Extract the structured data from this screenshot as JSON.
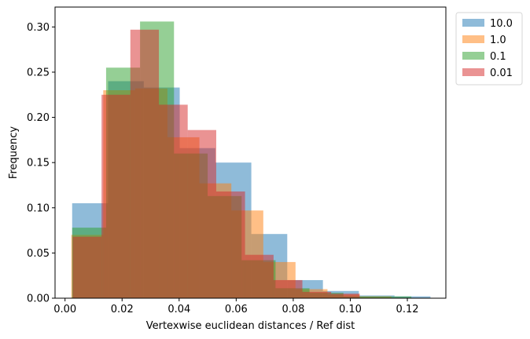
{
  "chart_data": {
    "type": "bar",
    "subtype": "overlapping-histogram",
    "title": "",
    "xlabel": "Vertexwise euclidean distances / Ref dist",
    "ylabel": "Frequency",
    "xlim": [
      -0.0035,
      0.1335
    ],
    "ylim": [
      0,
      0.322
    ],
    "xticks": [
      0.0,
      0.02,
      0.04,
      0.06,
      0.08,
      0.1,
      0.12
    ],
    "xtick_labels": [
      "0.00",
      "0.02",
      "0.04",
      "0.06",
      "0.08",
      "0.10",
      "0.12"
    ],
    "yticks": [
      0.0,
      0.05,
      0.1,
      0.15,
      0.2,
      0.25,
      0.3
    ],
    "ytick_labels": [
      "0.00",
      "0.05",
      "0.10",
      "0.15",
      "0.20",
      "0.25",
      "0.30"
    ],
    "grid": false,
    "legend_position": "outside-top-right",
    "bar_alpha": 0.5,
    "series": [
      {
        "name": "10.0",
        "color": "#1f77b4",
        "bins": [
          0.0025,
          0.0151,
          0.0276,
          0.0402,
          0.0527,
          0.0653,
          0.0779,
          0.0904,
          0.103,
          0.1155,
          0.1281
        ],
        "values": [
          0.105,
          0.24,
          0.233,
          0.166,
          0.15,
          0.071,
          0.02,
          0.008,
          0.003,
          0.002
        ]
      },
      {
        "name": "1.0",
        "color": "#ff7f0e",
        "bins": [
          0.0022,
          0.0134,
          0.0246,
          0.0359,
          0.0471,
          0.0583,
          0.0695,
          0.0808,
          0.092,
          0.1032,
          0.1144
        ],
        "values": [
          0.07,
          0.23,
          0.232,
          0.178,
          0.127,
          0.097,
          0.04,
          0.01,
          0.004,
          0.002
        ]
      },
      {
        "name": "0.1",
        "color": "#2ca02c",
        "bins": [
          0.0025,
          0.0144,
          0.0263,
          0.0382,
          0.05,
          0.0619,
          0.0738,
          0.0857,
          0.0976,
          0.1095,
          0.1214
        ],
        "values": [
          0.078,
          0.255,
          0.306,
          0.16,
          0.113,
          0.042,
          0.011,
          0.006,
          0.002,
          0.002
        ]
      },
      {
        "name": "0.01",
        "color": "#d62728",
        "bins": [
          0.0027,
          0.0128,
          0.0229,
          0.0329,
          0.043,
          0.053,
          0.0631,
          0.0731,
          0.0832,
          0.0933,
          0.1033
        ],
        "values": [
          0.068,
          0.225,
          0.297,
          0.214,
          0.186,
          0.118,
          0.048,
          0.02,
          0.007,
          0.005
        ]
      }
    ]
  }
}
